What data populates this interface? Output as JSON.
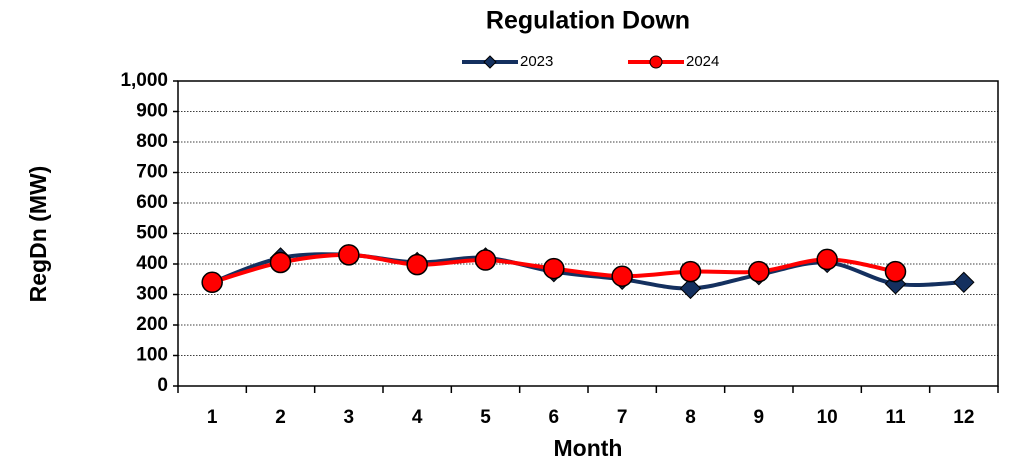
{
  "chart_data": {
    "type": "line",
    "title": "Regulation Down",
    "x_label": "Month",
    "y_label": "RegDn (MW)",
    "categories": [
      "1",
      "2",
      "3",
      "4",
      "5",
      "6",
      "7",
      "8",
      "9",
      "10",
      "11",
      "12"
    ],
    "series": [
      {
        "name": "2023",
        "color": "#14305f",
        "marker_color": "#14305f",
        "marker": "diamond",
        "values": [
          340,
          420,
          430,
          405,
          420,
          375,
          350,
          320,
          365,
          405,
          335,
          340
        ]
      },
      {
        "name": "2024",
        "color": "#ff0000",
        "marker_color": "#ff0000",
        "marker": "circle",
        "values": [
          340,
          405,
          430,
          398,
          413,
          385,
          360,
          375,
          375,
          415,
          375,
          null
        ]
      }
    ],
    "ylim": [
      0,
      1000
    ],
    "yticks": [
      0,
      100,
      200,
      300,
      400,
      500,
      600,
      700,
      800,
      900,
      {
        "value": 1000,
        "label": "1,000"
      }
    ],
    "grid": true,
    "smooth": true,
    "legend": "top"
  }
}
